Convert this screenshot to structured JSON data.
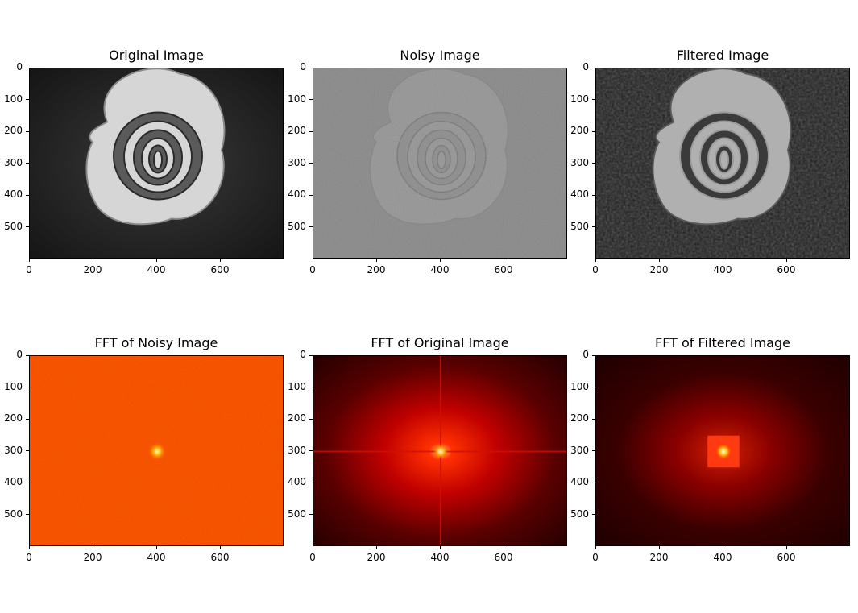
{
  "chart_data": [
    {
      "type": "image",
      "title": "Original Image",
      "style": "gray-rose",
      "xlim": [
        0,
        800
      ],
      "ylim": [
        0,
        600
      ],
      "xticks": [
        0,
        200,
        400,
        600
      ],
      "yticks": [
        0,
        100,
        200,
        300,
        400,
        500
      ]
    },
    {
      "type": "image",
      "title": "Noisy Image",
      "style": "noisy-rose",
      "xlim": [
        0,
        800
      ],
      "ylim": [
        0,
        600
      ],
      "xticks": [
        0,
        200,
        400,
        600
      ],
      "yticks": [
        0,
        100,
        200,
        300,
        400,
        500
      ]
    },
    {
      "type": "image",
      "title": "Filtered Image",
      "style": "filtered-rose",
      "xlim": [
        0,
        800
      ],
      "ylim": [
        0,
        600
      ],
      "xticks": [
        0,
        200,
        400,
        600
      ],
      "yticks": [
        0,
        100,
        200,
        300,
        400,
        500
      ]
    },
    {
      "type": "heatmap",
      "title": "FFT of Noisy Image",
      "style": "fft-noisy",
      "xlim": [
        0,
        800
      ],
      "ylim": [
        0,
        600
      ],
      "center": [
        400,
        300
      ],
      "xticks": [
        0,
        200,
        400,
        600
      ],
      "yticks": [
        0,
        100,
        200,
        300,
        400,
        500
      ]
    },
    {
      "type": "heatmap",
      "title": "FFT of Original Image",
      "style": "fft-original",
      "xlim": [
        0,
        800
      ],
      "ylim": [
        0,
        600
      ],
      "center": [
        400,
        300
      ],
      "xticks": [
        0,
        200,
        400,
        600
      ],
      "yticks": [
        0,
        100,
        200,
        300,
        400,
        500
      ]
    },
    {
      "type": "heatmap",
      "title": "FFT of Filtered Image",
      "style": "fft-filtered",
      "xlim": [
        0,
        800
      ],
      "ylim": [
        0,
        600
      ],
      "center": [
        400,
        300
      ],
      "filter_box": {
        "x": [
          350,
          450
        ],
        "y": [
          250,
          350
        ]
      },
      "xticks": [
        0,
        200,
        400,
        600
      ],
      "yticks": [
        0,
        100,
        200,
        300,
        400,
        500
      ]
    }
  ]
}
